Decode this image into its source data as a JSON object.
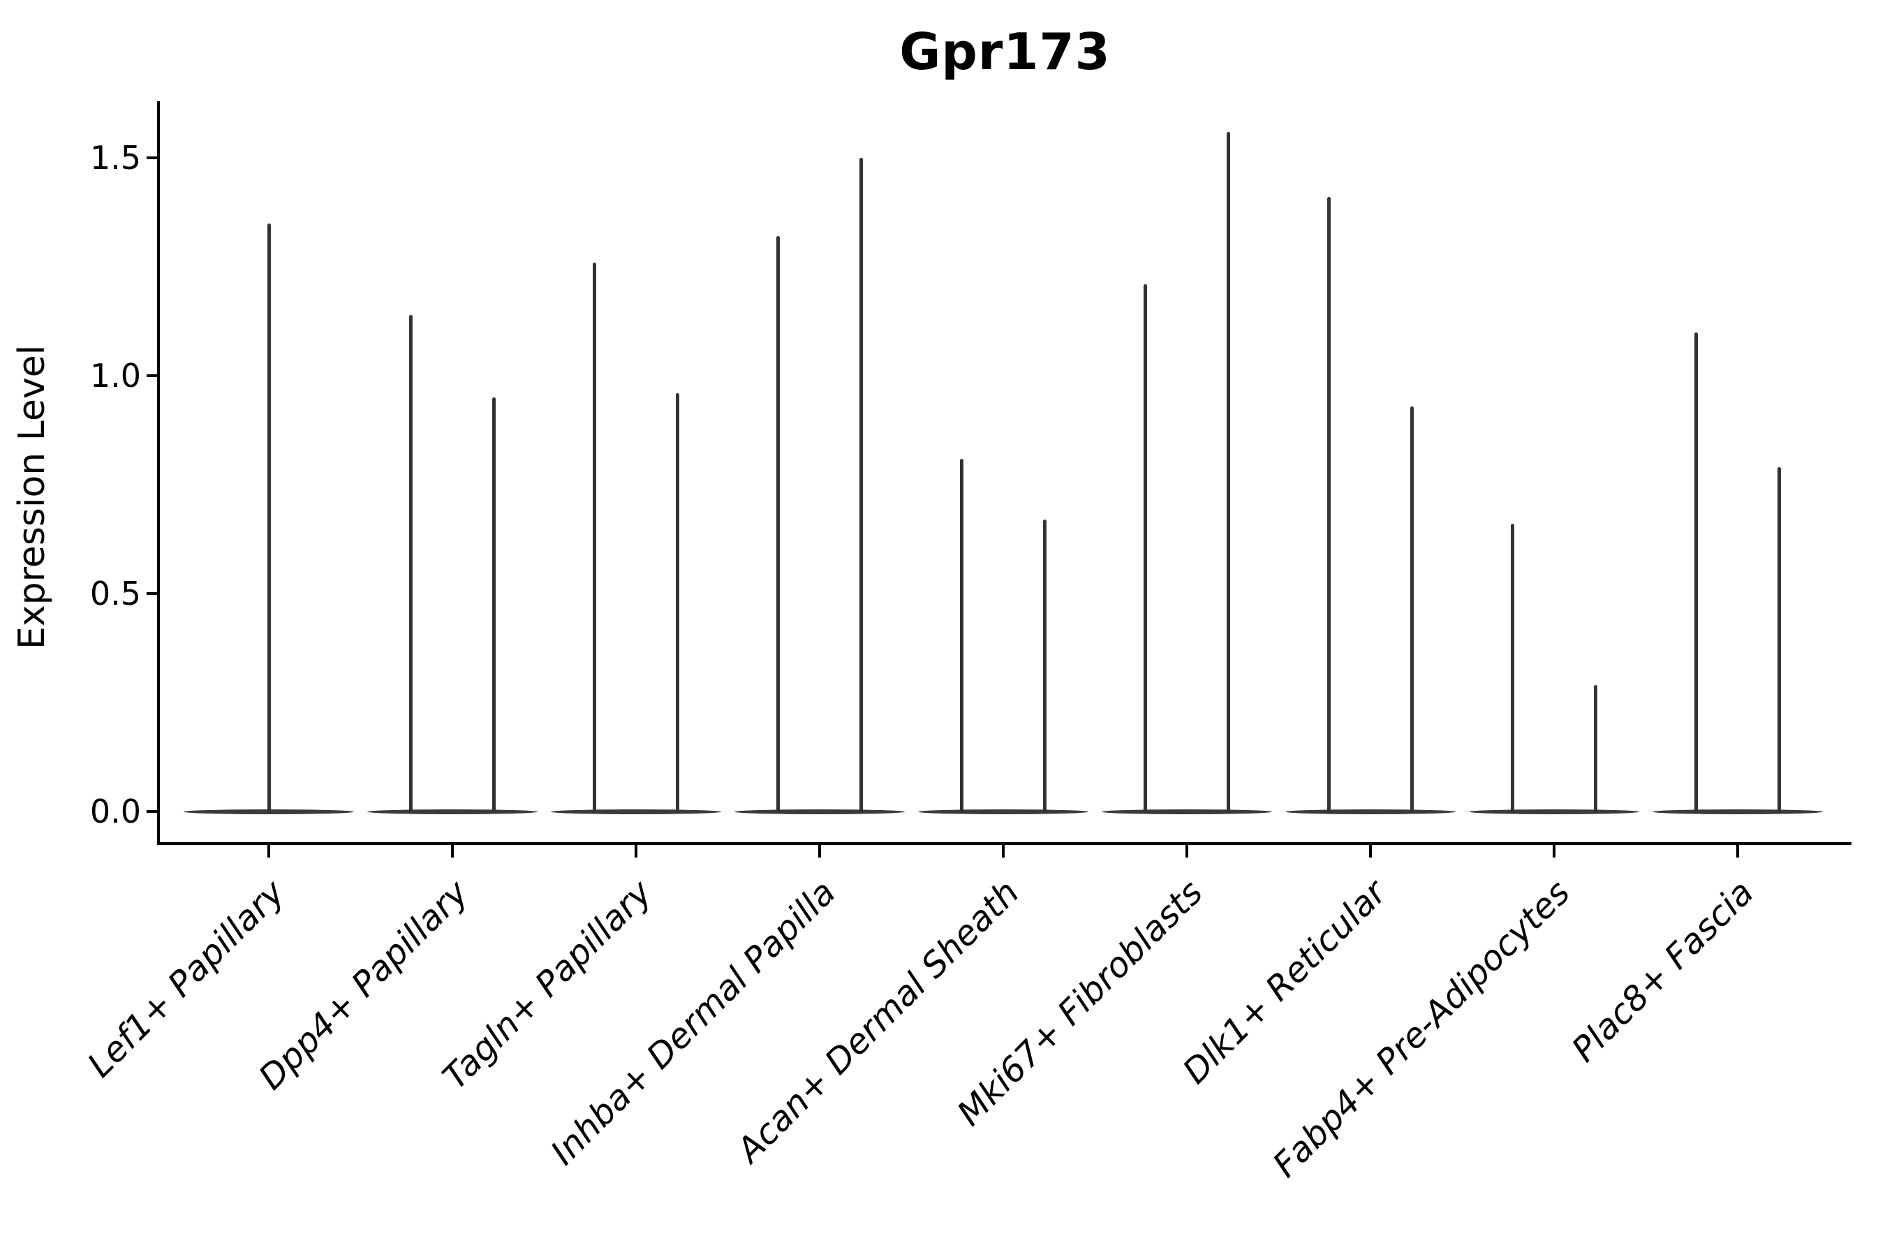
{
  "title": "Gpr173",
  "y_axis": {
    "label": "Expression Level",
    "tick_labels": [
      "0.0",
      "0.5",
      "1.0",
      "1.5"
    ]
  },
  "colors": {
    "axis": "#000000",
    "violin": "#3a3a3a",
    "background": "#ffffff"
  },
  "chart_data": {
    "type": "violin",
    "title": "Gpr173",
    "xlabel": "",
    "ylabel": "Expression Level",
    "ylim": [
      -0.07,
      1.63
    ],
    "yticks": [
      0.0,
      0.5,
      1.0,
      1.5
    ],
    "grid": false,
    "legend": "none",
    "description": "Violin plot of Gpr173 expression per fibroblast cluster; each violin collapses to a flat disc at 0 with one or two thin spikes reaching the maximum expression value.",
    "categories": [
      "Lef1+ Papillary",
      "Dpp4+ Papillary",
      "Tagln+ Papillary",
      "Inhba+ Dermal Papilla",
      "Acan+ Dermal Sheath",
      "Mki67+ Fibroblasts",
      "Dlk1+ Reticular",
      "Fabp4+ Pre-Adipocytes",
      "Plac8+ Fascia"
    ],
    "violins": [
      {
        "category": "Lef1+ Papillary",
        "spike_max_values": [
          1.35
        ]
      },
      {
        "category": "Dpp4+ Papillary",
        "spike_max_values": [
          1.14,
          0.95
        ]
      },
      {
        "category": "Tagln+ Papillary",
        "spike_max_values": [
          1.26,
          0.96
        ]
      },
      {
        "category": "Inhba+ Dermal Papilla",
        "spike_max_values": [
          1.32,
          1.5
        ]
      },
      {
        "category": "Acan+ Dermal Sheath",
        "spike_max_values": [
          0.81,
          0.67
        ]
      },
      {
        "category": "Mki67+ Fibroblasts",
        "spike_max_values": [
          1.21,
          1.56
        ]
      },
      {
        "category": "Dlk1+ Reticular",
        "spike_max_values": [
          1.41,
          0.93
        ]
      },
      {
        "category": "Fabp4+ Pre-Adipocytes",
        "spike_max_values": [
          0.66,
          0.29
        ]
      },
      {
        "category": "Plac8+ Fascia",
        "spike_max_values": [
          1.1,
          0.79
        ]
      }
    ]
  }
}
